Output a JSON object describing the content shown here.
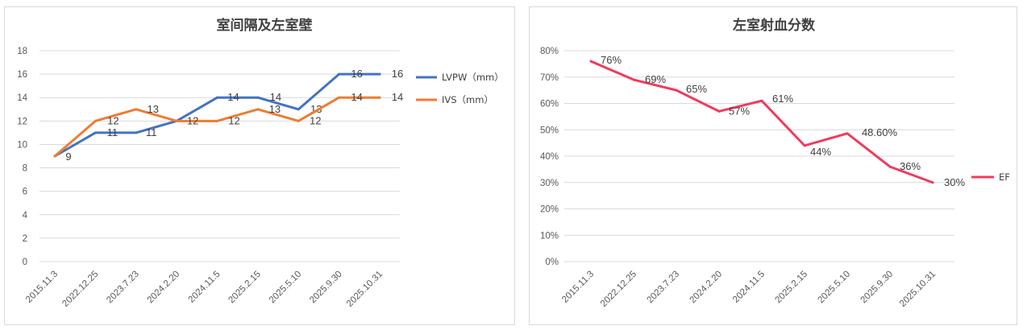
{
  "chart_data": [
    {
      "type": "line",
      "title": "室间隔及左室壁",
      "categories": [
        "2015.11.3",
        "2022.12.25",
        "2023.7.23",
        "2024.2.20",
        "2024.11.5",
        "2025.2.15",
        "2025.5.10",
        "2025.9.30",
        "2025.10.31"
      ],
      "series": [
        {
          "name": "LVPW（mm）",
          "color": "#4472c4",
          "values": [
            9,
            11,
            11,
            12,
            14,
            14,
            13,
            16,
            16
          ],
          "labels": [
            "9",
            "11",
            "11",
            "",
            "14",
            "14",
            "13",
            "16",
            "16"
          ]
        },
        {
          "name": "IVS（mm）",
          "color": "#ed7d31",
          "values": [
            9,
            12,
            13,
            12,
            12,
            13,
            12,
            14,
            14
          ],
          "labels": [
            "",
            "12",
            "13",
            "12",
            "12",
            "13",
            "12",
            "14",
            "14"
          ]
        }
      ],
      "ylim": [
        0,
        18
      ],
      "yticks": [
        0,
        2,
        4,
        6,
        8,
        10,
        12,
        14,
        16,
        18
      ],
      "ytick_labels": [
        "0",
        "2",
        "4",
        "6",
        "8",
        "10",
        "12",
        "14",
        "16",
        "18"
      ],
      "grid": true,
      "legend": "right"
    },
    {
      "type": "line",
      "title": "左室射血分数",
      "categories": [
        "2015.11.3",
        "2022.12.25",
        "2023.7.23",
        "2024.2.20",
        "2024.11.5",
        "2025.2.15",
        "2025.5.10",
        "2025.9.30",
        "2025.10.31"
      ],
      "series": [
        {
          "name": "EF",
          "color": "#f03b5f",
          "values": [
            0.76,
            0.69,
            0.65,
            0.57,
            0.61,
            0.44,
            0.486,
            0.36,
            0.3
          ],
          "labels": [
            "76%",
            "69%",
            "65%",
            "57%",
            "61%",
            "44%",
            "48.60%",
            "36%",
            "30%"
          ]
        }
      ],
      "ylim": [
        0,
        0.8
      ],
      "yticks": [
        0,
        0.1,
        0.2,
        0.3,
        0.4,
        0.5,
        0.6,
        0.7,
        0.8
      ],
      "ytick_labels": [
        "0%",
        "10%",
        "20%",
        "30%",
        "40%",
        "50%",
        "60%",
        "70%",
        "80%"
      ],
      "grid": true,
      "legend": "right"
    }
  ]
}
